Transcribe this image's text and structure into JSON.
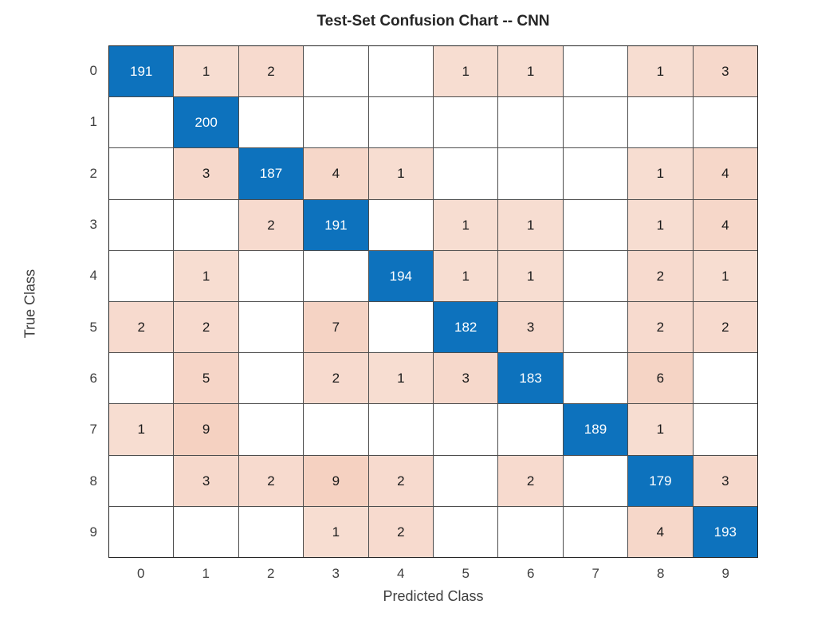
{
  "chart_data": {
    "type": "heatmap",
    "chart_kind": "confusion-matrix",
    "title": "Test-Set Confusion Chart -- CNN",
    "xlabel": "Predicted Class",
    "ylabel": "True Class",
    "x_tick_labels": [
      "0",
      "1",
      "2",
      "3",
      "4",
      "5",
      "6",
      "7",
      "8",
      "9"
    ],
    "y_tick_labels": [
      "0",
      "1",
      "2",
      "3",
      "4",
      "5",
      "6",
      "7",
      "8",
      "9"
    ],
    "matrix": [
      [
        191,
        1,
        2,
        0,
        0,
        1,
        1,
        0,
        1,
        3
      ],
      [
        0,
        200,
        0,
        0,
        0,
        0,
        0,
        0,
        0,
        0
      ],
      [
        0,
        3,
        187,
        4,
        1,
        0,
        0,
        0,
        1,
        4
      ],
      [
        0,
        0,
        2,
        191,
        0,
        1,
        1,
        0,
        1,
        4
      ],
      [
        0,
        1,
        0,
        0,
        194,
        1,
        1,
        0,
        2,
        1
      ],
      [
        2,
        2,
        0,
        7,
        0,
        182,
        3,
        0,
        2,
        2
      ],
      [
        0,
        5,
        0,
        2,
        1,
        3,
        183,
        0,
        6,
        0
      ],
      [
        1,
        9,
        0,
        0,
        0,
        0,
        0,
        189,
        1,
        0
      ],
      [
        0,
        3,
        2,
        9,
        2,
        0,
        2,
        0,
        179,
        3
      ],
      [
        0,
        0,
        0,
        1,
        2,
        0,
        0,
        0,
        4,
        193
      ]
    ],
    "layout": {
      "grid_on": true,
      "legend": "none"
    },
    "colors": {
      "diagonal_fill": "#0d72bd",
      "off_diagonal_base": "#d95319",
      "zero_cell_fill": "#ffffff",
      "diagonal_text": "#ffffff",
      "off_diagonal_text": "#1a1a1a",
      "grid_line": "#4d4d4d",
      "outer_border": "#262626",
      "axis_text": "#404040",
      "title_text": "#262626"
    }
  }
}
